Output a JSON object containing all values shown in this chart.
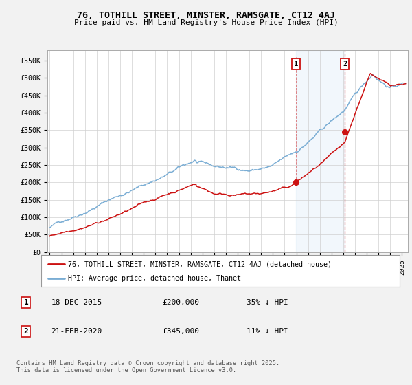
{
  "title": "76, TOTHILL STREET, MINSTER, RAMSGATE, CT12 4AJ",
  "subtitle": "Price paid vs. HM Land Registry's House Price Index (HPI)",
  "ylabel_ticks": [
    "£0",
    "£50K",
    "£100K",
    "£150K",
    "£200K",
    "£250K",
    "£300K",
    "£350K",
    "£400K",
    "£450K",
    "£500K",
    "£550K"
  ],
  "ytick_values": [
    0,
    50000,
    100000,
    150000,
    200000,
    250000,
    300000,
    350000,
    400000,
    450000,
    500000,
    550000
  ],
  "xlim_start": 1994.8,
  "xlim_end": 2025.5,
  "ylim_min": 0,
  "ylim_max": 580000,
  "hpi_color": "#7aadd4",
  "price_color": "#cc1111",
  "marker1_date": 2015.96,
  "marker1_price": 200000,
  "marker2_date": 2020.13,
  "marker2_price": 345000,
  "marker1_label": "18-DEC-2015",
  "marker1_value": "£200,000",
  "marker1_pct": "35% ↓ HPI",
  "marker2_label": "21-FEB-2020",
  "marker2_value": "£345,000",
  "marker2_pct": "11% ↓ HPI",
  "legend_line1": "76, TOTHILL STREET, MINSTER, RAMSGATE, CT12 4AJ (detached house)",
  "legend_line2": "HPI: Average price, detached house, Thanet",
  "footnote": "Contains HM Land Registry data © Crown copyright and database right 2025.\nThis data is licensed under the Open Government Licence v3.0.",
  "bg_color": "#f2f2f2",
  "plot_bg_color": "#ffffff"
}
